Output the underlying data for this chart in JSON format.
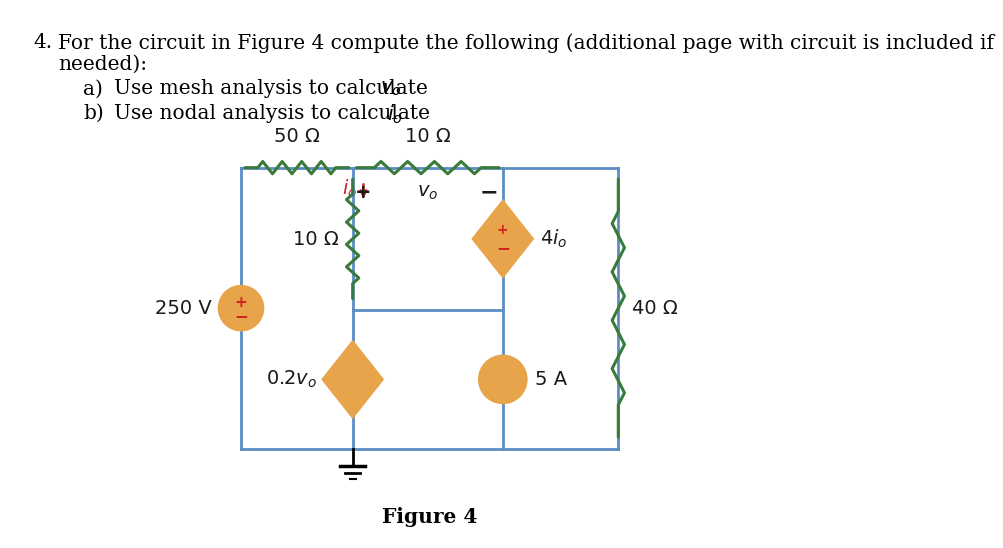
{
  "bg_color": "#ffffff",
  "wire_color": "#5b8cc4",
  "resistor_color": "#3a7a3a",
  "source_fill_orange": "#e8a44a",
  "source_edge_orange": "#e8a44a",
  "red_color": "#cc2222",
  "text_color": "#1a1a1a",
  "figure_caption": "Figure 4",
  "header_line1": "For the circuit in Figure 4 compute the following (additional page with circuit is included if",
  "header_line2": "needed):",
  "header_a": "a)   Use mesh analysis to calculate ",
  "header_a_var": "v",
  "header_b": "b)   Use nodal analysis to calculate ",
  "header_b_var": "i",
  "num_label": "4.",
  "res50_label": "50 Ω",
  "res10_top_label": "10 Ω",
  "res10_mid_label": "10 Ω",
  "res40_label": "40 Ω",
  "src250_label": "250 V",
  "src02_label": "0.2v",
  "src4io_label": "4i",
  "src5a_label": "5 A",
  "vo_label": "v",
  "io_label": "i"
}
